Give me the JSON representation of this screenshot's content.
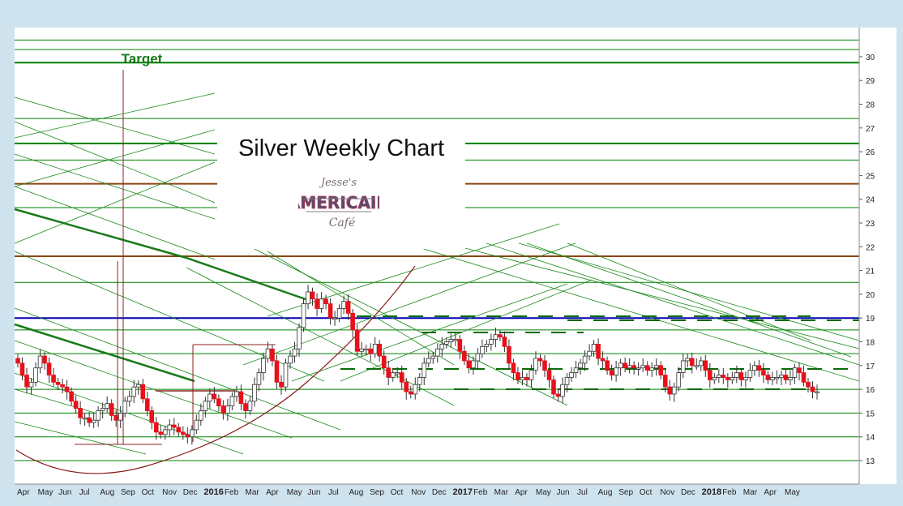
{
  "chart_data": {
    "type": "candlestick",
    "title": "Silver Weekly Chart",
    "annotation_target": "Target",
    "watermark": [
      "Jesse's",
      "AMERICAIN",
      "Café"
    ],
    "y_axis": {
      "side": "right",
      "range": [
        12.6,
        30.5
      ],
      "ticks": [
        13,
        14,
        15,
        16,
        17,
        18,
        19,
        20,
        21,
        22,
        23,
        24,
        25,
        26,
        27,
        28,
        29,
        30
      ]
    },
    "x_axis_labels": [
      "Apr",
      "May",
      "Jun",
      "Jul",
      "Aug",
      "Sep",
      "Oct",
      "Nov",
      "Dec",
      "2016",
      "Feb",
      "Mar",
      "Apr",
      "May",
      "Jun",
      "Jul",
      "Aug",
      "Sep",
      "Oct",
      "Nov",
      "Dec",
      "2017",
      "Feb",
      "Mar",
      "Apr",
      "May",
      "Jun",
      "Jul",
      "Aug",
      "Sep",
      "Oct",
      "Nov",
      "Dec",
      "2018",
      "Feb",
      "Mar",
      "Apr",
      "May"
    ],
    "x_axis_bold": [
      "2016",
      "2017",
      "2018"
    ],
    "horizontal_levels": [
      {
        "y": 30.7,
        "color": "#008000",
        "weight": "thin"
      },
      {
        "y": 30.3,
        "color": "#008000",
        "weight": "thin"
      },
      {
        "y": 29.75,
        "color": "#008000",
        "weight": "thick"
      },
      {
        "y": 27.4,
        "color": "#008000",
        "weight": "thin"
      },
      {
        "y": 26.35,
        "color": "#008000",
        "weight": "thick"
      },
      {
        "y": 25.65,
        "color": "#008000",
        "weight": "thin"
      },
      {
        "y": 24.65,
        "color": "#8b4513",
        "weight": "thick"
      },
      {
        "y": 23.65,
        "color": "#008000",
        "weight": "thin"
      },
      {
        "y": 21.6,
        "color": "#8b4513",
        "weight": "thick"
      },
      {
        "y": 20.5,
        "color": "#008000",
        "weight": "thin"
      },
      {
        "y": 19.0,
        "color": "#0000b0",
        "weight": "thick"
      },
      {
        "y": 18.5,
        "color": "#008000",
        "weight": "thin"
      },
      {
        "y": 17.5,
        "color": "#008000",
        "weight": "thin"
      },
      {
        "y": 16.0,
        "color": "#008000",
        "weight": "thin"
      },
      {
        "y": 15.0,
        "color": "#008000",
        "weight": "thin"
      },
      {
        "y": 14.0,
        "color": "#008000",
        "weight": "thin"
      },
      {
        "y": 13.0,
        "color": "#008000",
        "weight": "thin"
      }
    ],
    "weekly_close": [
      17.1,
      16.6,
      16.1,
      16.3,
      16.9,
      17.4,
      17.1,
      16.6,
      16.3,
      16.2,
      16.1,
      15.9,
      15.5,
      15.2,
      14.8,
      14.8,
      14.6,
      14.7,
      15.1,
      15.2,
      15.4,
      14.9,
      14.7,
      15.0,
      15.5,
      15.7,
      16.1,
      16.2,
      15.6,
      15.1,
      14.6,
      14.2,
      14.1,
      14.3,
      14.5,
      14.4,
      14.2,
      14.1,
      14.0,
      14.3,
      14.7,
      15.1,
      15.5,
      15.8,
      15.6,
      15.3,
      15.0,
      15.3,
      15.7,
      15.9,
      15.4,
      15.1,
      15.5,
      16.2,
      16.7,
      17.3,
      17.7,
      17.2,
      16.3,
      16.1,
      17.1,
      17.4,
      17.7,
      18.6,
      19.6,
      20.1,
      19.8,
      19.4,
      19.8,
      19.6,
      19.0,
      19.0,
      19.4,
      19.7,
      19.2,
      18.5,
      17.6,
      17.7,
      17.7,
      17.5,
      17.9,
      17.4,
      16.9,
      16.5,
      16.7,
      16.7,
      16.3,
      15.9,
      15.8,
      16.2,
      16.5,
      17.1,
      17.3,
      17.4,
      17.7,
      17.9,
      18.0,
      18.1,
      18.1,
      17.6,
      17.2,
      16.9,
      17.2,
      17.5,
      17.8,
      17.9,
      18.1,
      18.3,
      18.2,
      17.8,
      17.1,
      16.7,
      16.4,
      16.5,
      16.4,
      16.8,
      17.3,
      17.2,
      16.8,
      16.4,
      15.8,
      15.7,
      16.2,
      16.5,
      16.7,
      16.9,
      17.1,
      17.4,
      17.6,
      17.9,
      17.3,
      17.2,
      16.8,
      16.6,
      16.9,
      17.1,
      16.9,
      17.0,
      16.9,
      16.9,
      17.0,
      16.8,
      16.9,
      17.0,
      16.6,
      16.1,
      15.8,
      16.1,
      16.7,
      17.2,
      17.3,
      17.0,
      17.0,
      17.2,
      16.8,
      16.4,
      16.5,
      16.6,
      16.5,
      16.4,
      16.5,
      16.7,
      16.4,
      16.5,
      16.8,
      17.0,
      16.8,
      16.6,
      16.4,
      16.5,
      16.5,
      16.6,
      16.4,
      16.5,
      16.9,
      16.7,
      16.3,
      16.1,
      15.9,
      15.9
    ],
    "start_open": 17.3
  }
}
